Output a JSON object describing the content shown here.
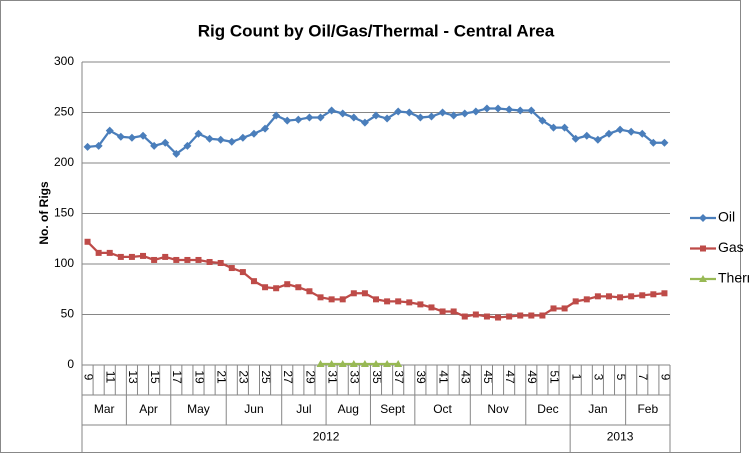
{
  "chart_data": {
    "type": "line",
    "title": "Rig Count by Oil/Gas/Thermal - Central Area",
    "y_label": "No. of Rigs",
    "categories": [
      "9",
      null,
      "11",
      null,
      "13",
      null,
      "15",
      null,
      "17",
      null,
      "19",
      null,
      "21",
      null,
      "23",
      null,
      "25",
      null,
      "27",
      null,
      "29",
      null,
      "31",
      null,
      "33",
      null,
      "35",
      null,
      "37",
      null,
      "39",
      null,
      "41",
      null,
      "43",
      null,
      "45",
      null,
      "47",
      null,
      "49",
      null,
      "51",
      null,
      "1",
      null,
      "3",
      null,
      "5",
      null,
      "7",
      null,
      "9"
    ],
    "month_labels": [
      "Mar",
      "Apr",
      "May",
      "Jun",
      "Jul",
      "Aug",
      "Sept",
      "Oct",
      "Nov",
      "Dec",
      "Jan",
      "Feb"
    ],
    "year_labels": [
      "2012",
      "2013"
    ],
    "series": [
      {
        "name": "Oil",
        "color": "#4a7ebb",
        "marker": "diamond",
        "values": [
          216,
          217,
          232,
          226,
          225,
          227,
          217,
          220,
          209,
          217,
          229,
          224,
          223,
          221,
          225,
          229,
          234,
          247,
          242,
          243,
          245,
          245,
          252,
          249,
          245,
          240,
          247,
          244,
          251,
          250,
          245,
          246,
          250,
          247,
          249,
          251,
          254,
          254,
          253,
          252,
          252,
          242,
          235,
          235,
          224,
          227,
          223,
          229,
          233,
          231,
          229,
          220,
          220
        ]
      },
      {
        "name": "Gas",
        "color": "#be4b48",
        "marker": "square",
        "values": [
          122,
          111,
          111,
          107,
          107,
          108,
          104,
          107,
          104,
          104,
          104,
          102,
          101,
          96,
          92,
          83,
          77,
          76,
          80,
          77,
          73,
          67,
          65,
          65,
          71,
          71,
          65,
          63,
          63,
          62,
          60,
          57,
          53,
          53,
          48,
          50,
          48,
          47,
          48,
          49,
          49,
          49,
          56,
          56,
          63,
          65,
          68,
          68,
          67,
          68,
          69,
          70,
          71
        ]
      },
      {
        "name": "Thermal",
        "color": "#98b954",
        "marker": "triangle",
        "values": [
          null,
          null,
          null,
          null,
          null,
          null,
          null,
          null,
          null,
          null,
          null,
          null,
          null,
          null,
          null,
          null,
          null,
          null,
          null,
          null,
          null,
          1,
          1,
          1,
          1,
          1,
          1,
          1,
          1,
          null,
          null,
          null,
          null,
          null,
          null,
          null,
          null,
          null,
          null,
          null,
          null,
          null,
          null,
          null,
          null,
          null,
          null,
          null,
          null,
          null,
          null,
          null,
          null
        ]
      }
    ],
    "ylim": [
      0,
      300
    ],
    "yticks": [
      0,
      50,
      100,
      150,
      200,
      250,
      300
    ],
    "grid": true,
    "legend": "right"
  }
}
